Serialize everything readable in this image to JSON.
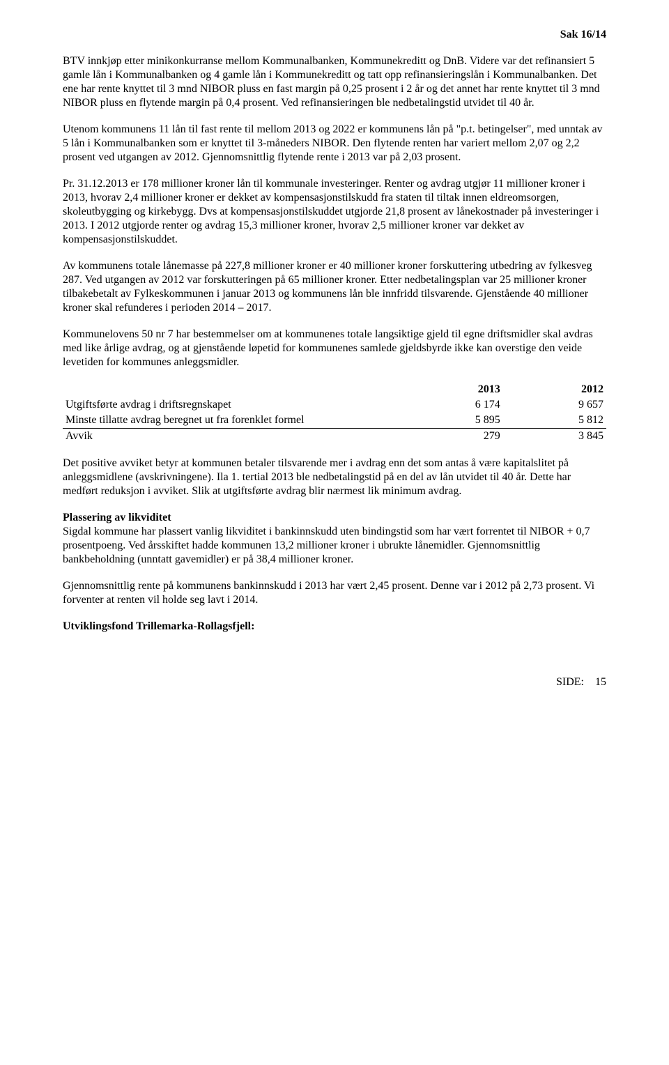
{
  "header": {
    "case_ref": "Sak  16/14"
  },
  "paragraphs": {
    "p1": "BTV innkjøp etter minikonkurranse mellom Kommunalbanken, Kommunekreditt og DnB. Videre var det refinansiert 5 gamle lån i Kommunalbanken og 4 gamle lån i Kommunekreditt og tatt opp refinansieringslån i Kommunalbanken. Det ene har rente knyttet til 3 mnd NIBOR pluss en fast margin på 0,25 prosent i 2 år og det annet har rente knyttet til 3 mnd NIBOR pluss en flytende margin på 0,4 prosent. Ved refinansieringen ble nedbetalingstid utvidet til 40 år.",
    "p2": "Utenom kommunens 11 lån til fast rente til mellom 2013 og 2022 er kommunens lån på \"p.t. betingelser\", med unntak av 5 lån i Kommunalbanken som er knyttet til 3-måneders NIBOR. Den flytende renten har variert mellom 2,07 og 2,2 prosent ved utgangen av 2012. Gjennomsnittlig flytende rente i  2013 var på 2,03 prosent.",
    "p3": "Pr. 31.12.2013 er 178 millioner kroner lån til kommunale investeringer. Renter og avdrag utgjør 11 millioner kroner i 2013, hvorav 2,4 millioner kroner er dekket av kompensasjonstilskudd fra staten til tiltak innen eldreomsorgen, skoleutbygging og kirkebygg. Dvs at kompensasjonstilskuddet utgjorde 21,8 prosent av lånekostnader på investeringer i 2013. I 2012 utgjorde renter og avdrag 15,3 millioner kroner, hvorav 2,5 millioner kroner var dekket av kompensasjonstilskuddet.",
    "p4": "Av kommunens totale lånemasse på 227,8 millioner kroner er 40 millioner kroner forskuttering utbedring av fylkesveg 287. Ved utgangen av 2012 var forskutteringen på 65 millioner kroner. Etter nedbetalingsplan var 25 millioner kroner tilbakebetalt av Fylkeskommunen i januar 2013 og kommunens lån ble innfridd tilsvarende. Gjenstående 40 millioner kroner skal refunderes i perioden 2014 – 2017.",
    "p5": "Kommunelovens 50 nr 7 har bestemmelser om at kommunenes totale langsiktige gjeld til egne driftsmidler skal avdras med like årlige avdrag, og at gjenstående løpetid for kommunenes samlede gjeldsbyrde ikke kan overstige den veide levetiden for kommunes anleggsmidler.",
    "p6": "Det positive avviket betyr at kommunen betaler tilsvarende mer i avdrag enn det som antas å være kapitalslitet på anleggsmidlene (avskrivningene). Ila 1. tertial 2013 ble nedbetalingstid på en del av lån utvidet til 40 år. Dette har medført reduksjon i avviket. Slik at utgiftsførte avdrag blir nærmest lik minimum avdrag.",
    "h_liquidity": "Plassering av likviditet",
    "p7": "Sigdal kommune har plassert vanlig likviditet i bankinnskudd uten bindingstid som har vært forrentet til NIBOR + 0,7 prosentpoeng. Ved årsskiftet hadde kommunen 13,2 millioner kroner i ubrukte lånemidler. Gjennomsnittlig bankbeholdning (unntatt gavemidler) er på 38,4 millioner kroner.",
    "p8": "Gjennomsnittlig rente på kommunens bankinnskudd i 2013 har vært 2,45 prosent. Denne var i 2012 på 2,73 prosent. Vi forventer at renten vil holde seg lavt i 2014.",
    "h_fund": "Utviklingsfond Trillemarka-Rollagsfjell:"
  },
  "table": {
    "head_year1": "2013",
    "head_year2": "2012",
    "row1_label": "Utgiftsførte avdrag i driftsregnskapet",
    "row1_v1": "6 174",
    "row1_v2": "9 657",
    "row2_label": "Minste tillatte avdrag beregnet ut fra forenklet formel",
    "row2_v1": "5 895",
    "row2_v2": "5 812",
    "row3_label": "Avvik",
    "row3_v1": "279",
    "row3_v2": "3 845"
  },
  "footer": {
    "side_label": "SIDE:",
    "page_num": "15"
  },
  "colors": {
    "text": "#000000",
    "background": "#ffffff"
  },
  "typography": {
    "font_family": "Times New Roman",
    "body_fontsize_pt": 12,
    "header_bold": true
  }
}
